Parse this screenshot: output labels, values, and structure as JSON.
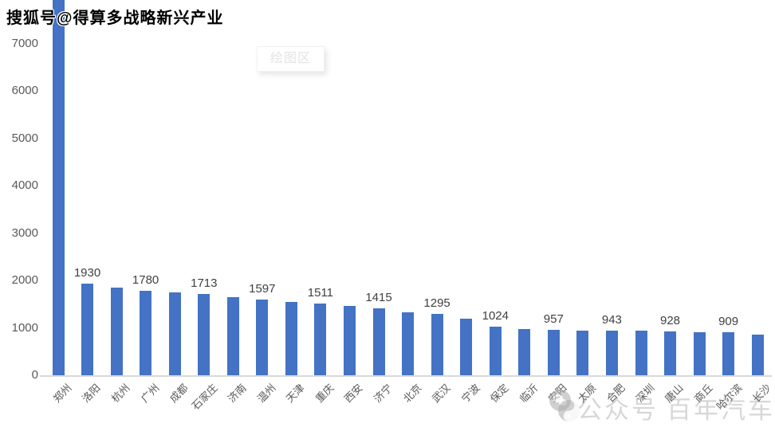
{
  "page": {
    "source_credit": "搜狐号@得算多战略新兴产业",
    "plot_area_label": "绘图区",
    "watermark": {
      "prefix": "公众号",
      "name": "百年汽车"
    }
  },
  "chart_data": {
    "type": "bar",
    "title": "",
    "xlabel": "",
    "ylabel": "",
    "grid": false,
    "legend": false,
    "bar_color": "#4472C4",
    "axis_color": "#d9d9d9",
    "tick_label_color": "#595959",
    "data_label_color": "#404040",
    "ylim": [
      0,
      7000
    ],
    "yticks": [
      0,
      1000,
      2000,
      3000,
      4000,
      5000,
      6000,
      7000
    ],
    "first_bar_clipped_above_axis": true,
    "categories": [
      "郑州",
      "洛阳",
      "杭州",
      "广州",
      "成都",
      "石家庄",
      "济南",
      "温州",
      "天津",
      "重庆",
      "西安",
      "济宁",
      "北京",
      "武汉",
      "宁波",
      "保定",
      "临沂",
      "安阳",
      "太原",
      "合肥",
      "深圳",
      "唐山",
      "商丘",
      "哈尔滨",
      "长沙"
    ],
    "values": [
      8200,
      1930,
      1850,
      1780,
      1745,
      1713,
      1650,
      1597,
      1550,
      1511,
      1470,
      1415,
      1330,
      1295,
      1190,
      1024,
      975,
      957,
      950,
      943,
      935,
      928,
      915,
      909,
      860
    ],
    "data_labels": [
      "",
      "1930",
      "",
      "1780",
      "",
      "1713",
      "",
      "1597",
      "",
      "1511",
      "",
      "1415",
      "",
      "1295",
      "",
      "1024",
      "",
      "957",
      "",
      "943",
      "",
      "928",
      "",
      "909",
      ""
    ]
  }
}
